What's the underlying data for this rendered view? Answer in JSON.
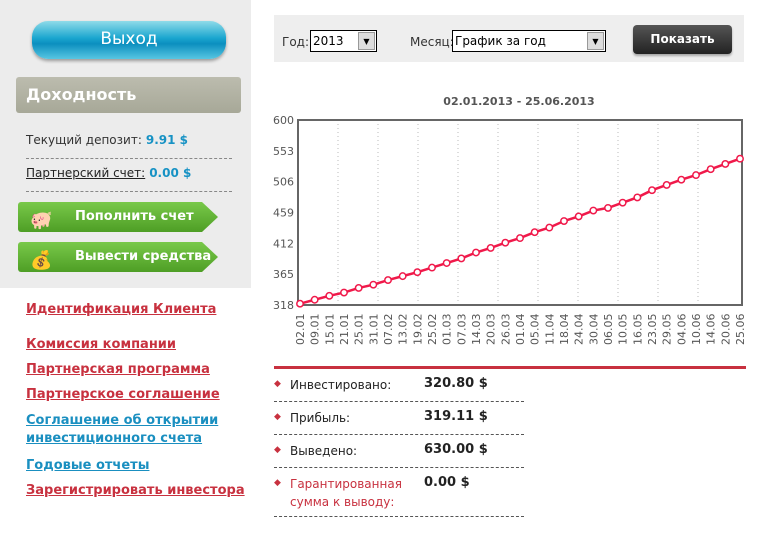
{
  "sidebar": {
    "exit_label": "Выход",
    "section_title": "Доходность",
    "deposit_label": "Текущий депозит:",
    "deposit_value": "9.91 $",
    "partner_label": "Партнерский счет:",
    "partner_value": "0.00 $",
    "topup_label": "Пополнить счет",
    "withdraw_label": "Вывести средства",
    "links": [
      {
        "label": "Идентификация Клиента",
        "color": "#c8313f"
      },
      {
        "label": "Комиссия компании",
        "color": "#c8313f"
      },
      {
        "label": "Партнерская программа",
        "color": "#c8313f"
      },
      {
        "label": "Партнерское соглашение",
        "color": "#c8313f"
      },
      {
        "label": "Соглашение об открытии инвестиционного счета",
        "color": "#1a8fc0"
      },
      {
        "label": "Годовые отчеты",
        "color": "#1a8fc0"
      },
      {
        "label": "Зарегистрировать инвестора",
        "color": "#c8313f"
      }
    ]
  },
  "filter": {
    "year_label": "Год:",
    "year_value": "2013",
    "month_label": "Месяц:",
    "month_value": "График за год",
    "show_label": "Показать"
  },
  "chart_data": {
    "type": "line",
    "title": "02.01.2013 - 25.06.2013",
    "ylim": [
      318,
      600
    ],
    "yticks": [
      318,
      365,
      412,
      459,
      506,
      553,
      600
    ],
    "color": "#f0194a",
    "grid": "vertical dotted",
    "x": [
      "02.01",
      "09.01",
      "15.01",
      "21.01",
      "25.01",
      "31.01",
      "07.02",
      "13.02",
      "19.02",
      "25.02",
      "01.03",
      "07.03",
      "14.03",
      "20.03",
      "26.03",
      "01.04",
      "05.04",
      "11.04",
      "18.04",
      "24.04",
      "30.04",
      "06.05",
      "10.05",
      "16.05",
      "23.05",
      "29.05",
      "04.06",
      "10.06",
      "14.06",
      "20.06",
      "25.06"
    ],
    "values": [
      320,
      326,
      332,
      337,
      344,
      349,
      356,
      362,
      368,
      375,
      382,
      389,
      398,
      405,
      413,
      420,
      429,
      436,
      446,
      453,
      462,
      466,
      474,
      482,
      493,
      501,
      509,
      516,
      525,
      533,
      541
    ]
  },
  "summary": [
    {
      "label": "Инвестировано:",
      "value": "320.80 $"
    },
    {
      "label": "Прибыль:",
      "value": "319.11 $"
    },
    {
      "label": "Выведено:",
      "value": "630.00 $"
    },
    {
      "label": "Гарантированная сумма к выводу:",
      "value": "0.00 $",
      "highlight": true
    }
  ]
}
